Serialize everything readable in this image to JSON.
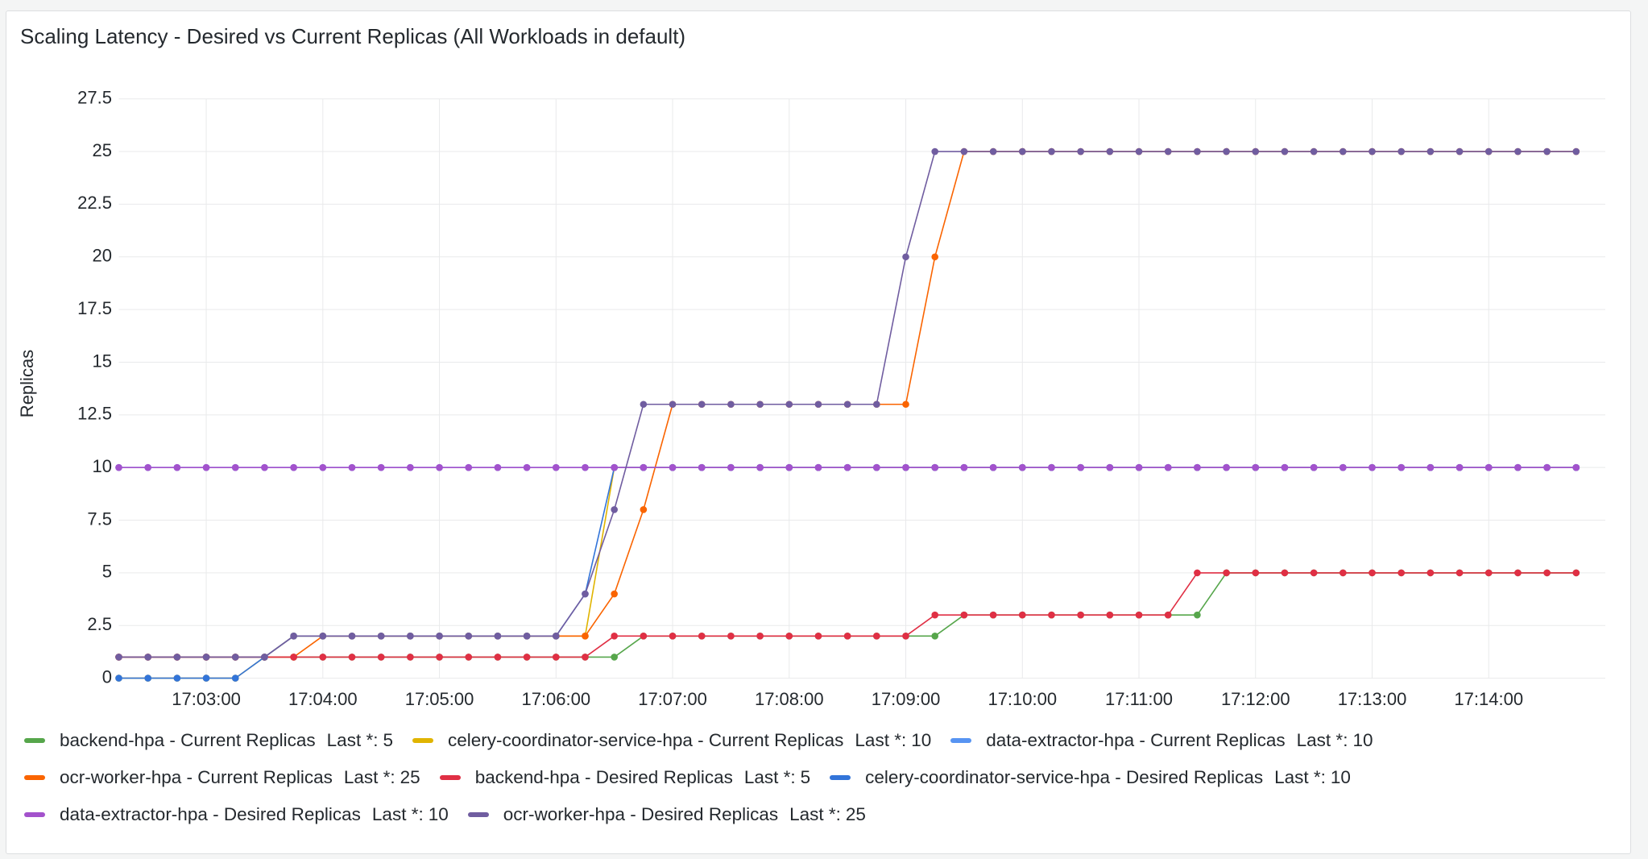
{
  "chart_data": {
    "type": "line",
    "title": "Scaling Latency - Desired vs Current Replicas (All Workloads in default)",
    "y_label": "Replicas",
    "legend_calc": "Last *:",
    "x": [
      "17:02:15",
      "17:02:30",
      "17:02:45",
      "17:03:00",
      "17:03:15",
      "17:03:30",
      "17:03:45",
      "17:04:00",
      "17:04:15",
      "17:04:30",
      "17:04:45",
      "17:05:00",
      "17:05:15",
      "17:05:30",
      "17:05:45",
      "17:06:00",
      "17:06:15",
      "17:06:30",
      "17:06:45",
      "17:07:00",
      "17:07:15",
      "17:07:30",
      "17:07:45",
      "17:08:00",
      "17:08:15",
      "17:08:30",
      "17:08:45",
      "17:09:00",
      "17:09:15",
      "17:09:30",
      "17:09:45",
      "17:10:00",
      "17:10:15",
      "17:10:30",
      "17:10:45",
      "17:11:00",
      "17:11:15",
      "17:11:30",
      "17:11:45",
      "17:12:00",
      "17:12:15",
      "17:12:30",
      "17:12:45",
      "17:13:00",
      "17:13:15",
      "17:13:30",
      "17:13:45",
      "17:14:00",
      "17:14:15",
      "17:14:30",
      "17:14:45"
    ],
    "xlim": [
      "17:02:15",
      "17:15:00"
    ],
    "xticks": [
      "17:03:00",
      "17:04:00",
      "17:05:00",
      "17:06:00",
      "17:07:00",
      "17:08:00",
      "17:09:00",
      "17:10:00",
      "17:11:00",
      "17:12:00",
      "17:13:00",
      "17:14:00"
    ],
    "ylim": [
      0,
      27.5
    ],
    "yticks": [
      0,
      2.5,
      5,
      7.5,
      10,
      12.5,
      15,
      17.5,
      20,
      22.5,
      25,
      27.5
    ],
    "grid": true,
    "series": [
      {
        "name": "backend-hpa - Current Replicas",
        "color": "#56a64b",
        "values": [
          1,
          1,
          1,
          1,
          1,
          1,
          1,
          1,
          1,
          1,
          1,
          1,
          1,
          1,
          1,
          1,
          1,
          1,
          2,
          2,
          2,
          2,
          2,
          2,
          2,
          2,
          2,
          2,
          2,
          3,
          3,
          3,
          3,
          3,
          3,
          3,
          3,
          3,
          5,
          5,
          5,
          5,
          5,
          5,
          5,
          5,
          5,
          5,
          5,
          5,
          5
        ]
      },
      {
        "name": "celery-coordinator-service-hpa - Current Replicas",
        "color": "#e0b400",
        "values": [
          0,
          0,
          0,
          0,
          0,
          1,
          2,
          2,
          2,
          2,
          2,
          2,
          2,
          2,
          2,
          2,
          2,
          10,
          10,
          10,
          10,
          10,
          10,
          10,
          10,
          10,
          10,
          10,
          10,
          10,
          10,
          10,
          10,
          10,
          10,
          10,
          10,
          10,
          10,
          10,
          10,
          10,
          10,
          10,
          10,
          10,
          10,
          10,
          10,
          10,
          10
        ]
      },
      {
        "name": "data-extractor-hpa - Current Replicas",
        "color": "#5794f2",
        "values": [
          10,
          10,
          10,
          10,
          10,
          10,
          10,
          10,
          10,
          10,
          10,
          10,
          10,
          10,
          10,
          10,
          10,
          10,
          10,
          10,
          10,
          10,
          10,
          10,
          10,
          10,
          10,
          10,
          10,
          10,
          10,
          10,
          10,
          10,
          10,
          10,
          10,
          10,
          10,
          10,
          10,
          10,
          10,
          10,
          10,
          10,
          10,
          10,
          10,
          10,
          10
        ]
      },
      {
        "name": "ocr-worker-hpa - Current Replicas",
        "color": "#fa6400",
        "values": [
          1,
          1,
          1,
          1,
          1,
          1,
          1,
          2,
          2,
          2,
          2,
          2,
          2,
          2,
          2,
          2,
          2,
          4,
          8,
          13,
          13,
          13,
          13,
          13,
          13,
          13,
          13,
          13,
          20,
          25,
          25,
          25,
          25,
          25,
          25,
          25,
          25,
          25,
          25,
          25,
          25,
          25,
          25,
          25,
          25,
          25,
          25,
          25,
          25,
          25,
          25
        ]
      },
      {
        "name": "backend-hpa - Desired Replicas",
        "color": "#e02f44",
        "values": [
          1,
          1,
          1,
          1,
          1,
          1,
          1,
          1,
          1,
          1,
          1,
          1,
          1,
          1,
          1,
          1,
          1,
          2,
          2,
          2,
          2,
          2,
          2,
          2,
          2,
          2,
          2,
          2,
          3,
          3,
          3,
          3,
          3,
          3,
          3,
          3,
          3,
          5,
          5,
          5,
          5,
          5,
          5,
          5,
          5,
          5,
          5,
          5,
          5,
          5,
          5
        ]
      },
      {
        "name": "celery-coordinator-service-hpa - Desired Replicas",
        "color": "#3274d9",
        "values": [
          0,
          0,
          0,
          0,
          0,
          1,
          2,
          2,
          2,
          2,
          2,
          2,
          2,
          2,
          2,
          2,
          4,
          10,
          10,
          10,
          10,
          10,
          10,
          10,
          10,
          10,
          10,
          10,
          10,
          10,
          10,
          10,
          10,
          10,
          10,
          10,
          10,
          10,
          10,
          10,
          10,
          10,
          10,
          10,
          10,
          10,
          10,
          10,
          10,
          10,
          10
        ]
      },
      {
        "name": "data-extractor-hpa - Desired Replicas",
        "color": "#a352cc",
        "values": [
          10,
          10,
          10,
          10,
          10,
          10,
          10,
          10,
          10,
          10,
          10,
          10,
          10,
          10,
          10,
          10,
          10,
          10,
          10,
          10,
          10,
          10,
          10,
          10,
          10,
          10,
          10,
          10,
          10,
          10,
          10,
          10,
          10,
          10,
          10,
          10,
          10,
          10,
          10,
          10,
          10,
          10,
          10,
          10,
          10,
          10,
          10,
          10,
          10,
          10,
          10
        ]
      },
      {
        "name": "ocr-worker-hpa - Desired Replicas",
        "color": "#705da0",
        "values": [
          1,
          1,
          1,
          1,
          1,
          1,
          2,
          2,
          2,
          2,
          2,
          2,
          2,
          2,
          2,
          2,
          4,
          8,
          13,
          13,
          13,
          13,
          13,
          13,
          13,
          13,
          13,
          20,
          25,
          25,
          25,
          25,
          25,
          25,
          25,
          25,
          25,
          25,
          25,
          25,
          25,
          25,
          25,
          25,
          25,
          25,
          25,
          25,
          25,
          25,
          25
        ]
      }
    ]
  }
}
